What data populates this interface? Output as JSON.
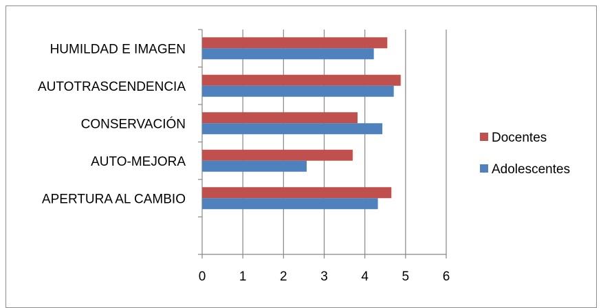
{
  "chart_data": {
    "type": "bar",
    "orientation": "horizontal",
    "title": "",
    "xlabel": "",
    "ylabel": "",
    "categories": [
      "APERTURA AL CAMBIO",
      "AUTO-MEJORA",
      "CONSERVACIÓN",
      "AUTOTRASCENDENCIA",
      "HUMILDAD E IMAGEN"
    ],
    "series": [
      {
        "name": "Docentes",
        "color": "#c0504d",
        "values": [
          4.65,
          3.7,
          3.82,
          4.88,
          4.55
        ]
      },
      {
        "name": "Adolescentes",
        "color": "#4f81bd",
        "values": [
          4.32,
          2.57,
          4.43,
          4.71,
          4.22
        ]
      }
    ],
    "xlim": [
      0,
      6
    ],
    "xticks": [
      0,
      1,
      2,
      3,
      4,
      5,
      6
    ],
    "grid": "vertical",
    "legend_position": "right",
    "gridline_color": "#868686"
  }
}
